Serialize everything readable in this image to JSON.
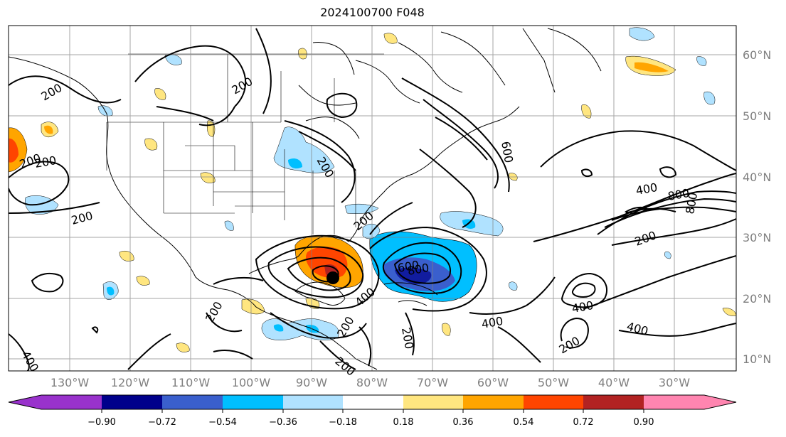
{
  "title": "2024100700 F048",
  "map": {
    "lat_labels": [
      "60°N",
      "50°N",
      "40°N",
      "30°N",
      "20°N",
      "10°N"
    ],
    "lon_labels": [
      "130°W",
      "120°W",
      "110°W",
      "100°W",
      "90°W",
      "80°W",
      "70°W",
      "60°W",
      "50°W",
      "40°W",
      "30°W"
    ],
    "contour_labels": [
      "200",
      "200",
      "200",
      "200",
      "200",
      "200",
      "200",
      "200",
      "200",
      "200",
      "200",
      "200",
      "200",
      "400",
      "400",
      "400",
      "400",
      "400",
      "400",
      "600",
      "600",
      "800",
      "800",
      "800"
    ],
    "colors": {
      "contour": "#000000",
      "grid": "#808080",
      "land_border": "#000000",
      "marker": "#000000"
    }
  },
  "colorbar": {
    "ticks": [
      "−0.90",
      "−0.72",
      "−0.54",
      "−0.36",
      "−0.18",
      "0.18",
      "0.36",
      "0.54",
      "0.72",
      "0.90"
    ],
    "colors": [
      "#9932cc",
      "#00008b",
      "#3a5fcd",
      "#00bfff",
      "#b0e2ff",
      "#ffffff",
      "#ffe680",
      "#ffa500",
      "#ff4500",
      "#b22222",
      "#ff85b0"
    ]
  }
}
